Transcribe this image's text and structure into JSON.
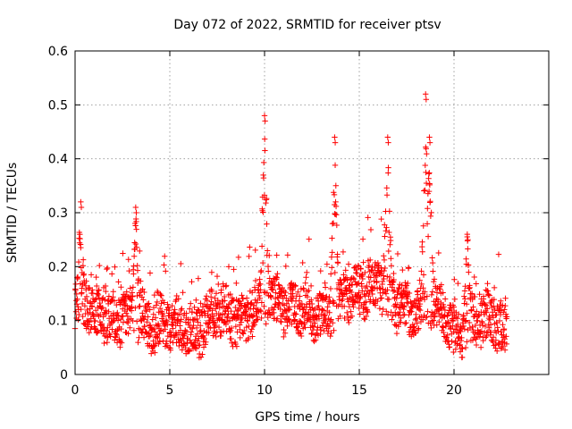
{
  "chart_data": {
    "type": "scatter",
    "title": "Day 072 of 2022, SRMTID for receiver ptsv",
    "xlabel": "GPS time / hours",
    "ylabel": "SRMTID / TECUs",
    "xlim": [
      0,
      25
    ],
    "ylim": [
      0,
      0.6
    ],
    "xticks": [
      0,
      5,
      10,
      15,
      20
    ],
    "yticks": [
      0,
      0.1,
      0.2,
      0.3,
      0.4,
      0.5,
      0.6
    ],
    "xtick_labels": [
      "0",
      "5",
      "10",
      "15",
      "20"
    ],
    "ytick_labels": [
      "0",
      "0.1",
      "0.2",
      "0.3",
      "0.4",
      "0.5",
      "0.6"
    ],
    "grid": true,
    "marker": "+",
    "color": "#ff0000",
    "x_extent": [
      0,
      22.8
    ],
    "baseline_curve": [
      [
        0,
        0.13
      ],
      [
        0.5,
        0.13
      ],
      [
        1,
        0.11
      ],
      [
        1.5,
        0.12
      ],
      [
        2,
        0.11
      ],
      [
        2.5,
        0.1
      ],
      [
        3,
        0.1
      ],
      [
        3.5,
        0.11
      ],
      [
        4,
        0.1
      ],
      [
        4.5,
        0.1
      ],
      [
        5,
        0.09
      ],
      [
        5.5,
        0.08
      ],
      [
        6,
        0.09
      ],
      [
        6.5,
        0.09
      ],
      [
        7,
        0.1
      ],
      [
        7.5,
        0.11
      ],
      [
        8,
        0.11
      ],
      [
        8.5,
        0.11
      ],
      [
        9,
        0.11
      ],
      [
        9.5,
        0.12
      ],
      [
        10,
        0.14
      ],
      [
        10.5,
        0.14
      ],
      [
        11,
        0.13
      ],
      [
        11.5,
        0.13
      ],
      [
        12,
        0.11
      ],
      [
        12.5,
        0.11
      ],
      [
        13,
        0.11
      ],
      [
        13.5,
        0.13
      ],
      [
        14,
        0.13
      ],
      [
        14.5,
        0.14
      ],
      [
        15,
        0.15
      ],
      [
        15.5,
        0.17
      ],
      [
        16,
        0.18
      ],
      [
        16.5,
        0.14
      ],
      [
        17,
        0.12
      ],
      [
        17.5,
        0.12
      ],
      [
        18,
        0.13
      ],
      [
        18.5,
        0.15
      ],
      [
        19,
        0.12
      ],
      [
        19.5,
        0.1
      ],
      [
        20,
        0.08
      ],
      [
        20.5,
        0.09
      ],
      [
        21,
        0.1
      ],
      [
        21.5,
        0.09
      ],
      [
        22,
        0.1
      ],
      [
        22.8,
        0.09
      ]
    ],
    "peaks": [
      {
        "x": 0.3,
        "y": 0.32
      },
      {
        "x": 3.2,
        "y": 0.31
      },
      {
        "x": 10.0,
        "y": 0.48
      },
      {
        "x": 13.7,
        "y": 0.44
      },
      {
        "x": 16.5,
        "y": 0.44
      },
      {
        "x": 18.5,
        "y": 0.52
      },
      {
        "x": 18.7,
        "y": 0.44
      },
      {
        "x": 20.7,
        "y": 0.26
      }
    ]
  }
}
